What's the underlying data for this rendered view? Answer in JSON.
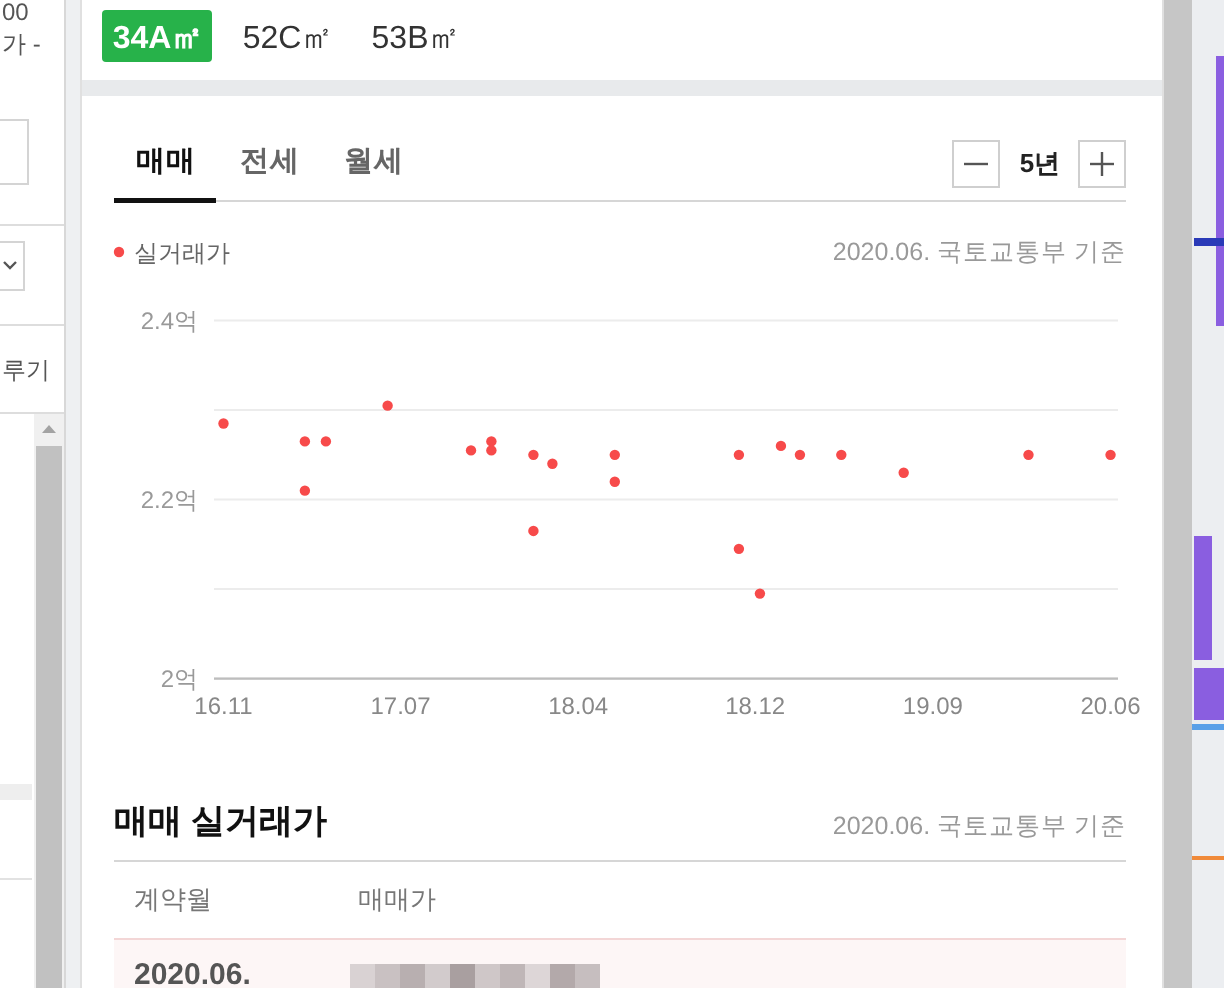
{
  "chart_data": {
    "type": "scatter",
    "legend": "top left",
    "grid": "y",
    "marker": "circle",
    "x": [
      "2016-11",
      "2017-03",
      "2017-03",
      "2017-04",
      "2017-07",
      "2017-11",
      "2017-12",
      "2017-12",
      "2018-02",
      "2018-02",
      "2018-03",
      "2018-06",
      "2018-06",
      "2018-12",
      "2018-12",
      "2019-01",
      "2019-02",
      "2019-03",
      "2019-05",
      "2019-08",
      "2020-02",
      "2020-06"
    ],
    "series": [
      {
        "name": "실거래가",
        "color": "#f74a4a",
        "values": [
          2.285,
          2.265,
          2.21,
          2.265,
          2.305,
          2.255,
          2.265,
          2.255,
          2.25,
          2.165,
          2.24,
          2.25,
          2.22,
          2.25,
          2.145,
          2.095,
          2.26,
          2.25,
          2.25,
          2.23,
          2.25,
          2.25
        ]
      }
    ],
    "xlim": [
      "2016-10-18",
      "2020-06-12"
    ],
    "xticks": [
      {
        "value": "2016-11",
        "label": "16.11"
      },
      {
        "value": "2017-07-20",
        "label": "17.07"
      },
      {
        "value": "2018-04-08",
        "label": "18.04"
      },
      {
        "value": "2018-12-25",
        "label": "18.12"
      },
      {
        "value": "2019-09-13",
        "label": "19.09"
      },
      {
        "value": "2020-06",
        "label": "20.06"
      }
    ],
    "ylim": [
      2,
      2.4
    ],
    "yticks": [
      {
        "value": 2,
        "label": "2억"
      },
      {
        "value": 2.1,
        "label": null
      },
      {
        "value": 2.2,
        "label": "2.2억"
      },
      {
        "value": 2.3,
        "label": null
      },
      {
        "value": 2.4,
        "label": "2.4억"
      }
    ],
    "annotations": [
      "00",
      "가 -",
      "루기",
      "34A㎡",
      "52C㎡",
      "53B㎡",
      "매매",
      "전세",
      "월세",
      "5년",
      "2020.06. 국토교통부 기준",
      "매매 실거래가",
      "2020.06. 국토교통부 기준",
      "계약월",
      "매매가",
      "2020.06."
    ]
  }
}
